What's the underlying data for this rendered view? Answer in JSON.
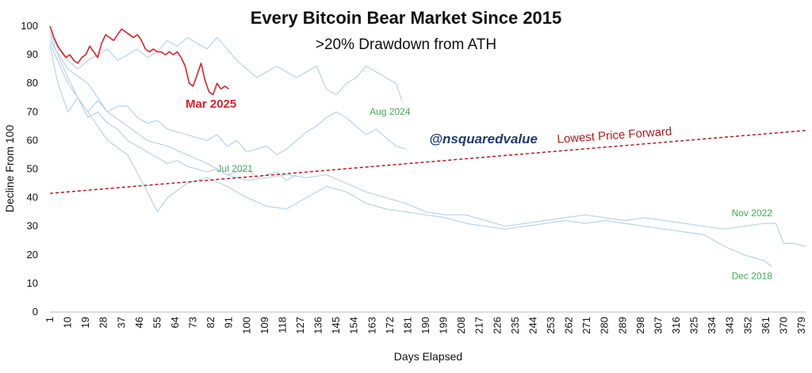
{
  "chart_data": {
    "type": "line",
    "title": "Every Bitcoin Bear Market Since 2015",
    "subtitle": ">20% Drawdown from ATH",
    "xlabel": "Days Elapsed",
    "ylabel": "Decline From 100",
    "ylim": [
      0,
      100
    ],
    "yticks": [
      0,
      10,
      20,
      30,
      40,
      50,
      60,
      70,
      80,
      90,
      100
    ],
    "xlim": [
      1,
      381
    ],
    "xticks": [
      1,
      10,
      19,
      28,
      37,
      46,
      55,
      64,
      73,
      82,
      91,
      100,
      109,
      118,
      127,
      136,
      145,
      154,
      163,
      172,
      181,
      190,
      199,
      208,
      217,
      226,
      235,
      244,
      253,
      262,
      271,
      280,
      289,
      298,
      307,
      316,
      325,
      334,
      343,
      352,
      361,
      370,
      379
    ],
    "watermark": "@nsquaredvalue",
    "colors": {
      "history": "#b9d3ea",
      "current": "#d9232a",
      "trend": "#b01c1c",
      "history_labels": "#3faa55"
    },
    "series": [
      {
        "name": "Mar 2025",
        "color": "#d9232a",
        "points": [
          [
            1,
            100
          ],
          [
            3,
            96
          ],
          [
            5,
            93
          ],
          [
            7,
            91
          ],
          [
            9,
            89
          ],
          [
            11,
            90
          ],
          [
            13,
            88
          ],
          [
            15,
            87
          ],
          [
            17,
            89
          ],
          [
            19,
            90
          ],
          [
            21,
            93
          ],
          [
            23,
            91
          ],
          [
            25,
            89
          ],
          [
            27,
            94
          ],
          [
            29,
            97
          ],
          [
            31,
            96
          ],
          [
            33,
            95
          ],
          [
            35,
            97
          ],
          [
            37,
            99
          ],
          [
            39,
            98
          ],
          [
            41,
            97
          ],
          [
            43,
            96
          ],
          [
            45,
            97
          ],
          [
            47,
            95
          ],
          [
            49,
            92
          ],
          [
            51,
            91
          ],
          [
            53,
            92
          ],
          [
            55,
            91
          ],
          [
            57,
            91
          ],
          [
            59,
            90
          ],
          [
            61,
            91
          ],
          [
            63,
            90
          ],
          [
            65,
            91
          ],
          [
            67,
            89
          ],
          [
            69,
            86
          ],
          [
            71,
            80
          ],
          [
            73,
            79
          ],
          [
            75,
            83
          ],
          [
            77,
            87
          ],
          [
            79,
            81
          ],
          [
            81,
            77
          ],
          [
            83,
            76
          ],
          [
            85,
            80
          ],
          [
            87,
            78
          ],
          [
            89,
            79
          ],
          [
            91,
            78
          ]
        ]
      },
      {
        "name": "Aug 2024",
        "color": "#b9d3ea",
        "points": [
          [
            1,
            97
          ],
          [
            5,
            90
          ],
          [
            10,
            82
          ],
          [
            15,
            75
          ],
          [
            20,
            70
          ],
          [
            25,
            74
          ],
          [
            30,
            70
          ],
          [
            35,
            72
          ],
          [
            40,
            72
          ],
          [
            45,
            68
          ],
          [
            50,
            66
          ],
          [
            55,
            67
          ],
          [
            60,
            64
          ],
          [
            65,
            63
          ],
          [
            70,
            62
          ],
          [
            75,
            61
          ],
          [
            80,
            60
          ],
          [
            85,
            62
          ],
          [
            90,
            58
          ],
          [
            95,
            60
          ],
          [
            100,
            56
          ],
          [
            105,
            57
          ],
          [
            110,
            58
          ],
          [
            115,
            55
          ],
          [
            120,
            57
          ],
          [
            125,
            60
          ],
          [
            130,
            63
          ],
          [
            135,
            65
          ],
          [
            140,
            68
          ],
          [
            145,
            70
          ],
          [
            150,
            68
          ],
          [
            155,
            65
          ],
          [
            160,
            62
          ],
          [
            165,
            64
          ],
          [
            170,
            61
          ],
          [
            175,
            58
          ],
          [
            180,
            57
          ]
        ]
      },
      {
        "name": "Jul 2021",
        "color": "#b9d3ea",
        "points": [
          [
            1,
            98
          ],
          [
            5,
            92
          ],
          [
            10,
            88
          ],
          [
            15,
            85
          ],
          [
            20,
            88
          ],
          [
            25,
            90
          ],
          [
            30,
            92
          ],
          [
            35,
            88
          ],
          [
            40,
            90
          ],
          [
            45,
            92
          ],
          [
            50,
            89
          ],
          [
            55,
            91
          ],
          [
            60,
            95
          ],
          [
            65,
            93
          ],
          [
            70,
            96
          ],
          [
            75,
            94
          ],
          [
            80,
            92
          ],
          [
            85,
            96
          ],
          [
            90,
            92
          ],
          [
            95,
            88
          ],
          [
            100,
            85
          ],
          [
            105,
            82
          ],
          [
            110,
            84
          ],
          [
            115,
            86
          ],
          [
            120,
            84
          ],
          [
            125,
            82
          ],
          [
            130,
            84
          ],
          [
            135,
            86
          ],
          [
            140,
            78
          ],
          [
            145,
            76
          ],
          [
            150,
            80
          ],
          [
            155,
            82
          ],
          [
            160,
            86
          ],
          [
            165,
            84
          ],
          [
            170,
            82
          ],
          [
            175,
            80
          ],
          [
            178,
            74
          ]
        ]
      },
      {
        "name": "Nov 2022",
        "color": "#b9d3ea",
        "points": [
          [
            1,
            95
          ],
          [
            10,
            85
          ],
          [
            20,
            80
          ],
          [
            30,
            70
          ],
          [
            40,
            65
          ],
          [
            50,
            60
          ],
          [
            60,
            58
          ],
          [
            70,
            55
          ],
          [
            80,
            52
          ],
          [
            90,
            48
          ],
          [
            100,
            46
          ],
          [
            110,
            47
          ],
          [
            120,
            48
          ],
          [
            130,
            47
          ],
          [
            140,
            48
          ],
          [
            150,
            45
          ],
          [
            160,
            42
          ],
          [
            170,
            40
          ],
          [
            180,
            38
          ],
          [
            190,
            35
          ],
          [
            200,
            34
          ],
          [
            210,
            34
          ],
          [
            220,
            32
          ],
          [
            230,
            30
          ],
          [
            240,
            31
          ],
          [
            250,
            32
          ],
          [
            260,
            33
          ],
          [
            270,
            34
          ],
          [
            280,
            33
          ],
          [
            290,
            32
          ],
          [
            300,
            33
          ],
          [
            310,
            32
          ],
          [
            320,
            31
          ],
          [
            330,
            30
          ],
          [
            340,
            29
          ],
          [
            350,
            30
          ],
          [
            360,
            31
          ],
          [
            366,
            31
          ],
          [
            370,
            24
          ],
          [
            375,
            24
          ],
          [
            381,
            23
          ]
        ]
      },
      {
        "name": "Dec 2018",
        "color": "#b9d3ea",
        "points": [
          [
            1,
            94
          ],
          [
            10,
            80
          ],
          [
            20,
            70
          ],
          [
            30,
            60
          ],
          [
            40,
            55
          ],
          [
            50,
            42
          ],
          [
            55,
            35
          ],
          [
            60,
            40
          ],
          [
            70,
            45
          ],
          [
            80,
            47
          ],
          [
            90,
            44
          ],
          [
            100,
            40
          ],
          [
            110,
            37
          ],
          [
            120,
            36
          ],
          [
            130,
            40
          ],
          [
            140,
            44
          ],
          [
            150,
            42
          ],
          [
            160,
            38
          ],
          [
            170,
            36
          ],
          [
            180,
            35
          ],
          [
            190,
            34
          ],
          [
            200,
            33
          ],
          [
            210,
            31
          ],
          [
            220,
            30
          ],
          [
            230,
            29
          ],
          [
            240,
            30
          ],
          [
            250,
            31
          ],
          [
            260,
            32
          ],
          [
            270,
            31
          ],
          [
            280,
            32
          ],
          [
            290,
            31
          ],
          [
            300,
            30
          ],
          [
            310,
            29
          ],
          [
            320,
            28
          ],
          [
            330,
            27
          ],
          [
            340,
            23
          ],
          [
            350,
            20
          ],
          [
            360,
            18
          ],
          [
            364,
            16
          ]
        ]
      },
      {
        "name": "",
        "color": "#b9d3ea",
        "points": [
          [
            1,
            93
          ],
          [
            5,
            80
          ],
          [
            10,
            70
          ],
          [
            15,
            75
          ],
          [
            20,
            68
          ],
          [
            25,
            70
          ],
          [
            30,
            66
          ],
          [
            35,
            64
          ],
          [
            40,
            60
          ],
          [
            45,
            58
          ],
          [
            50,
            56
          ],
          [
            55,
            54
          ],
          [
            60,
            52
          ],
          [
            65,
            53
          ],
          [
            70,
            51
          ],
          [
            75,
            50
          ],
          [
            80,
            49
          ],
          [
            85,
            50
          ],
          [
            90,
            48
          ],
          [
            95,
            49
          ],
          [
            100,
            50
          ],
          [
            105,
            47
          ],
          [
            110,
            48
          ],
          [
            115,
            49
          ],
          [
            120,
            46
          ],
          [
            125,
            48
          ]
        ]
      }
    ],
    "trend": {
      "name": "Lowest Price Forward",
      "x": [
        1,
        381
      ],
      "y": [
        41.5,
        63.5
      ]
    },
    "annotations": [
      {
        "text": "Mar 2025",
        "x": 82,
        "y": 71.5,
        "color": "#d9232a",
        "bold": true,
        "size": 15
      },
      {
        "text": "Aug 2024",
        "x": 172,
        "y": 69,
        "color": "#3faa55",
        "bold": false,
        "size": 12
      },
      {
        "text": "Jul 2021",
        "x": 94,
        "y": 49,
        "color": "#3faa55",
        "bold": false,
        "size": 12
      },
      {
        "text": "Nov 2022",
        "x": 354,
        "y": 33.5,
        "color": "#3faa55",
        "bold": false,
        "size": 12
      },
      {
        "text": "Dec 2018",
        "x": 354,
        "y": 11.5,
        "color": "#3faa55",
        "bold": false,
        "size": 12
      },
      {
        "text": "Lowest Price Forward",
        "x": 285,
        "y": 60.5,
        "color": "#b01c1c",
        "bold": false,
        "size": 15,
        "rotate": -4
      },
      {
        "text": "@nsquaredvalue",
        "x": 219,
        "y": 59,
        "color": "#1f3a78",
        "bold": true,
        "size": 17,
        "italic": true
      }
    ]
  }
}
